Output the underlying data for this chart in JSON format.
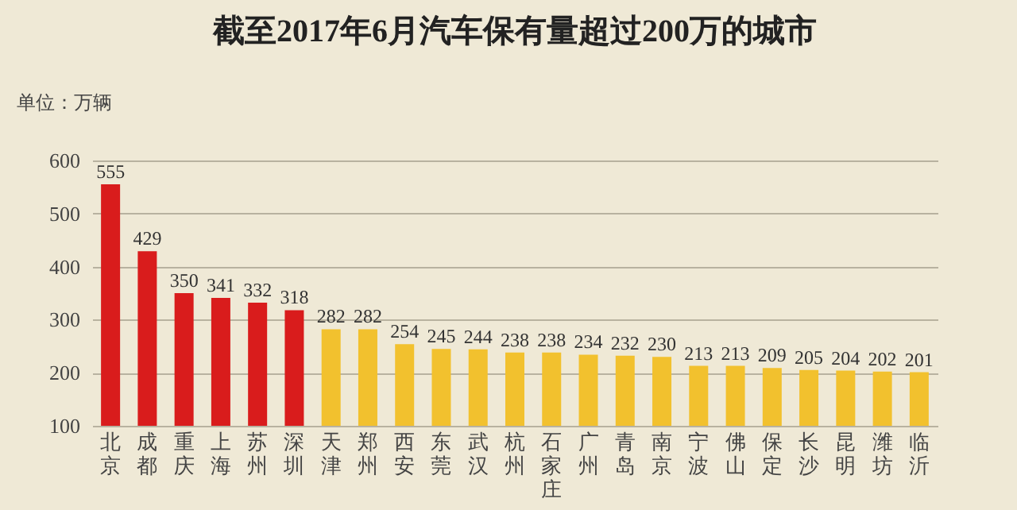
{
  "chart_data": {
    "type": "bar",
    "title": "截至2017年6月汽车保有量超过200万的城市",
    "ylabel": "单位：万辆",
    "categories": [
      "北京",
      "成都",
      "重庆",
      "上海",
      "苏州",
      "深圳",
      "天津",
      "郑州",
      "西安",
      "东莞",
      "武汉",
      "杭州",
      "石家庄",
      "广州",
      "青岛",
      "南京",
      "宁波",
      "佛山",
      "保定",
      "长沙",
      "昆明",
      "潍坊",
      "临沂"
    ],
    "values": [
      555,
      429,
      350,
      341,
      332,
      318,
      282,
      282,
      254,
      245,
      244,
      238,
      238,
      234,
      232,
      230,
      213,
      213,
      209,
      205,
      204,
      202,
      201
    ],
    "colors": [
      "#d91c1c",
      "#d91c1c",
      "#d91c1c",
      "#d91c1c",
      "#d91c1c",
      "#d91c1c",
      "#f2c12e",
      "#f2c12e",
      "#f2c12e",
      "#f2c12e",
      "#f2c12e",
      "#f2c12e",
      "#f2c12e",
      "#f2c12e",
      "#f2c12e",
      "#f2c12e",
      "#f2c12e",
      "#f2c12e",
      "#f2c12e",
      "#f2c12e",
      "#f2c12e",
      "#f2c12e",
      "#f2c12e"
    ],
    "ylim": [
      100,
      600
    ],
    "yticks": [
      100,
      200,
      300,
      400,
      500,
      600
    ],
    "grid": "y",
    "data_labels": true
  }
}
